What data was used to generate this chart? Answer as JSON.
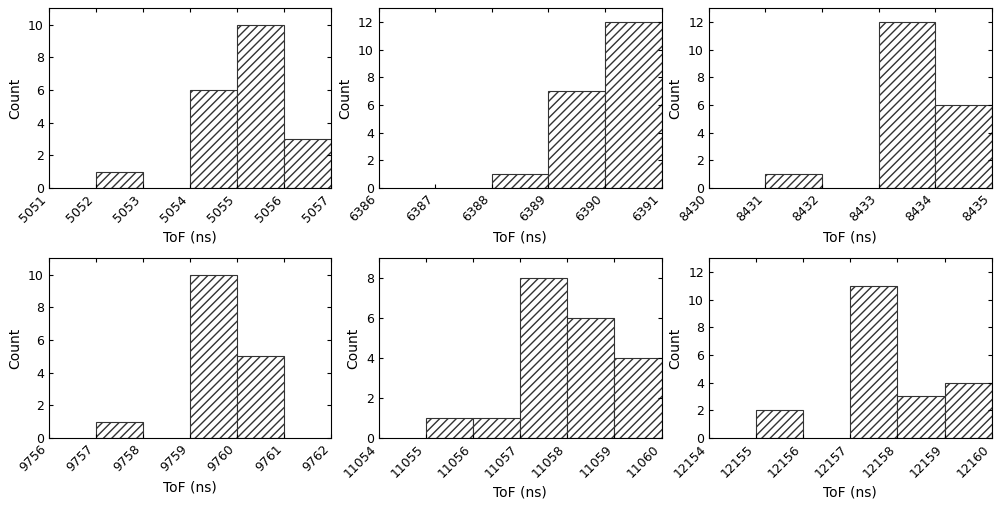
{
  "subplots": [
    {
      "bin_edges": [
        5051,
        5052,
        5053,
        5054,
        5055,
        5056,
        5057
      ],
      "counts": [
        0,
        1,
        0,
        6,
        10,
        3
      ],
      "xlabel": "ToF (ns)",
      "ylabel": "Count",
      "ylim": [
        0,
        11
      ],
      "yticks": [
        0,
        2,
        4,
        6,
        8,
        10
      ]
    },
    {
      "bin_edges": [
        6386,
        6387,
        6388,
        6389,
        6390,
        6391
      ],
      "counts": [
        0,
        0,
        1,
        7,
        12
      ],
      "xlabel": "ToF (ns)",
      "ylabel": "Count",
      "ylim": [
        0,
        13
      ],
      "yticks": [
        0,
        2,
        4,
        6,
        8,
        10,
        12
      ]
    },
    {
      "bin_edges": [
        8430,
        8431,
        8432,
        8433,
        8434,
        8435
      ],
      "counts": [
        0,
        1,
        0,
        12,
        6
      ],
      "xlabel": "ToF (ns)",
      "ylabel": "Count",
      "ylim": [
        0,
        13
      ],
      "yticks": [
        0,
        2,
        4,
        6,
        8,
        10,
        12
      ]
    },
    {
      "bin_edges": [
        9756,
        9757,
        9758,
        9759,
        9760,
        9761,
        9762
      ],
      "counts": [
        0,
        1,
        0,
        10,
        5,
        0
      ],
      "xlabel": "ToF (ns)",
      "ylabel": "Count",
      "ylim": [
        0,
        11
      ],
      "yticks": [
        0,
        2,
        4,
        6,
        8,
        10
      ]
    },
    {
      "bin_edges": [
        11054,
        11055,
        11056,
        11057,
        11058,
        11059,
        11060
      ],
      "counts": [
        0,
        1,
        1,
        8,
        6,
        4
      ],
      "xlabel": "ToF (ns)",
      "ylabel": "Count",
      "ylim": [
        0,
        9
      ],
      "yticks": [
        0,
        2,
        4,
        6,
        8
      ]
    },
    {
      "bin_edges": [
        12154,
        12155,
        12156,
        12157,
        12158,
        12159,
        12160
      ],
      "counts": [
        0,
        2,
        0,
        11,
        3,
        4
      ],
      "xlabel": "ToF (ns)",
      "ylabel": "Count",
      "ylim": [
        0,
        13
      ],
      "yticks": [
        0,
        2,
        4,
        6,
        8,
        10,
        12
      ]
    }
  ],
  "hatch_pattern": "////",
  "bar_facecolor": "white",
  "bar_edgecolor": "#333333",
  "background_color": "white",
  "tick_label_rotation": 45,
  "label_fontsize": 10,
  "tick_fontsize": 9,
  "figsize": [
    10.0,
    5.08
  ],
  "dpi": 100
}
